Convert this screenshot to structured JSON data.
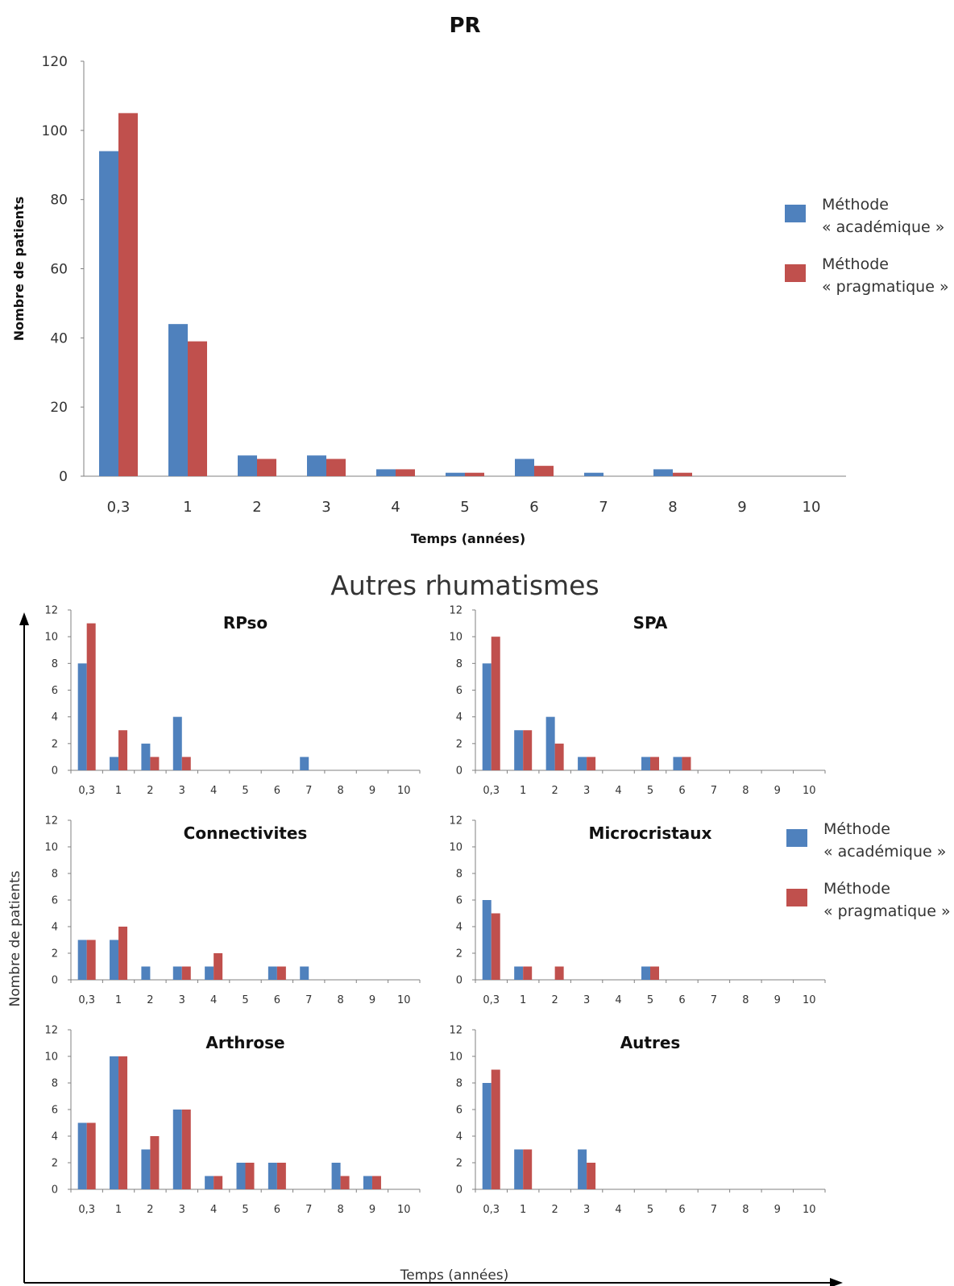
{
  "colors": {
    "academique": "#4F81BD",
    "pragmatique": "#C0504D",
    "axis": "#808080",
    "text": "#333333"
  },
  "legend": {
    "academique": [
      "Méthode",
      "« académique »"
    ],
    "pragmatique": [
      "Méthode",
      "« pragmatique »"
    ]
  },
  "section_title": "Autres rhumatismes",
  "y_label_small": "Nombre de patients",
  "x_label_small": "Temps (années)",
  "chart_data": [
    {
      "id": "pr",
      "type": "bar",
      "title": "PR",
      "xlabel": "Temps (années)",
      "ylabel": "Nombre de patients",
      "ylim": [
        0,
        120
      ],
      "yticks": [
        0,
        20,
        40,
        60,
        80,
        100,
        120
      ],
      "categories": [
        "0,3",
        "1",
        "2",
        "3",
        "4",
        "5",
        "6",
        "7",
        "8",
        "9",
        "10"
      ],
      "series": [
        {
          "name": "Méthode « académique »",
          "values": [
            94,
            44,
            6,
            6,
            2,
            1,
            5,
            1,
            2,
            0,
            0
          ]
        },
        {
          "name": "Méthode « pragmatique »",
          "values": [
            105,
            39,
            5,
            5,
            2,
            1,
            3,
            0,
            1,
            0,
            0
          ]
        }
      ]
    },
    {
      "id": "rpso",
      "type": "bar",
      "title": "RPso",
      "ylim": [
        0,
        12
      ],
      "yticks": [
        0,
        2,
        4,
        6,
        8,
        10,
        12
      ],
      "categories": [
        "0,3",
        "1",
        "2",
        "3",
        "4",
        "5",
        "6",
        "7",
        "8",
        "9",
        "10"
      ],
      "series": [
        {
          "name": "Méthode « académique »",
          "values": [
            8,
            1,
            2,
            4,
            0,
            0,
            0,
            1,
            0,
            0,
            0
          ]
        },
        {
          "name": "Méthode « pragmatique »",
          "values": [
            11,
            3,
            1,
            1,
            0,
            0,
            0,
            0,
            0,
            0,
            0
          ]
        }
      ]
    },
    {
      "id": "spa",
      "type": "bar",
      "title": "SPA",
      "ylim": [
        0,
        12
      ],
      "yticks": [
        0,
        2,
        4,
        6,
        8,
        10,
        12
      ],
      "categories": [
        "0,3",
        "1",
        "2",
        "3",
        "4",
        "5",
        "6",
        "7",
        "8",
        "9",
        "10"
      ],
      "series": [
        {
          "name": "Méthode « académique »",
          "values": [
            8,
            3,
            4,
            1,
            0,
            1,
            1,
            0,
            0,
            0,
            0
          ]
        },
        {
          "name": "Méthode « pragmatique »",
          "values": [
            10,
            3,
            2,
            1,
            0,
            1,
            1,
            0,
            0,
            0,
            0
          ]
        }
      ]
    },
    {
      "id": "connectivites",
      "type": "bar",
      "title": "Connectivites",
      "ylim": [
        0,
        12
      ],
      "yticks": [
        0,
        2,
        4,
        6,
        8,
        10,
        12
      ],
      "categories": [
        "0,3",
        "1",
        "2",
        "3",
        "4",
        "5",
        "6",
        "7",
        "8",
        "9",
        "10"
      ],
      "series": [
        {
          "name": "Méthode « académique »",
          "values": [
            3,
            3,
            1,
            1,
            1,
            0,
            1,
            1,
            0,
            0,
            0
          ]
        },
        {
          "name": "Méthode « pragmatique »",
          "values": [
            3,
            4,
            0,
            1,
            2,
            0,
            1,
            0,
            0,
            0,
            0
          ]
        }
      ]
    },
    {
      "id": "microcristaux",
      "type": "bar",
      "title": "Microcristaux",
      "ylim": [
        0,
        12
      ],
      "yticks": [
        0,
        2,
        4,
        6,
        8,
        10,
        12
      ],
      "categories": [
        "0,3",
        "1",
        "2",
        "3",
        "4",
        "5",
        "6",
        "7",
        "8",
        "9",
        "10"
      ],
      "series": [
        {
          "name": "Méthode « académique »",
          "values": [
            6,
            1,
            0,
            0,
            0,
            1,
            0,
            0,
            0,
            0,
            0
          ]
        },
        {
          "name": "Méthode « pragmatique »",
          "values": [
            5,
            1,
            1,
            0,
            0,
            1,
            0,
            0,
            0,
            0,
            0
          ]
        }
      ]
    },
    {
      "id": "arthrose",
      "type": "bar",
      "title": "Arthrose",
      "ylim": [
        0,
        12
      ],
      "yticks": [
        0,
        2,
        4,
        6,
        8,
        10,
        12
      ],
      "categories": [
        "0,3",
        "1",
        "2",
        "3",
        "4",
        "5",
        "6",
        "7",
        "8",
        "9",
        "10"
      ],
      "series": [
        {
          "name": "Méthode « académique »",
          "values": [
            5,
            10,
            3,
            6,
            1,
            2,
            2,
            0,
            2,
            1,
            0
          ]
        },
        {
          "name": "Méthode « pragmatique »",
          "values": [
            5,
            10,
            4,
            6,
            1,
            2,
            2,
            0,
            1,
            1,
            0
          ]
        }
      ]
    },
    {
      "id": "autres",
      "type": "bar",
      "title": "Autres",
      "ylim": [
        0,
        12
      ],
      "yticks": [
        0,
        2,
        4,
        6,
        8,
        10,
        12
      ],
      "categories": [
        "0,3",
        "1",
        "2",
        "3",
        "4",
        "5",
        "6",
        "7",
        "8",
        "9",
        "10"
      ],
      "series": [
        {
          "name": "Méthode « académique »",
          "values": [
            8,
            3,
            0,
            3,
            0,
            0,
            0,
            0,
            0,
            0,
            0
          ]
        },
        {
          "name": "Méthode « pragmatique »",
          "values": [
            9,
            3,
            0,
            2,
            0,
            0,
            0,
            0,
            0,
            0,
            0
          ]
        }
      ]
    }
  ]
}
